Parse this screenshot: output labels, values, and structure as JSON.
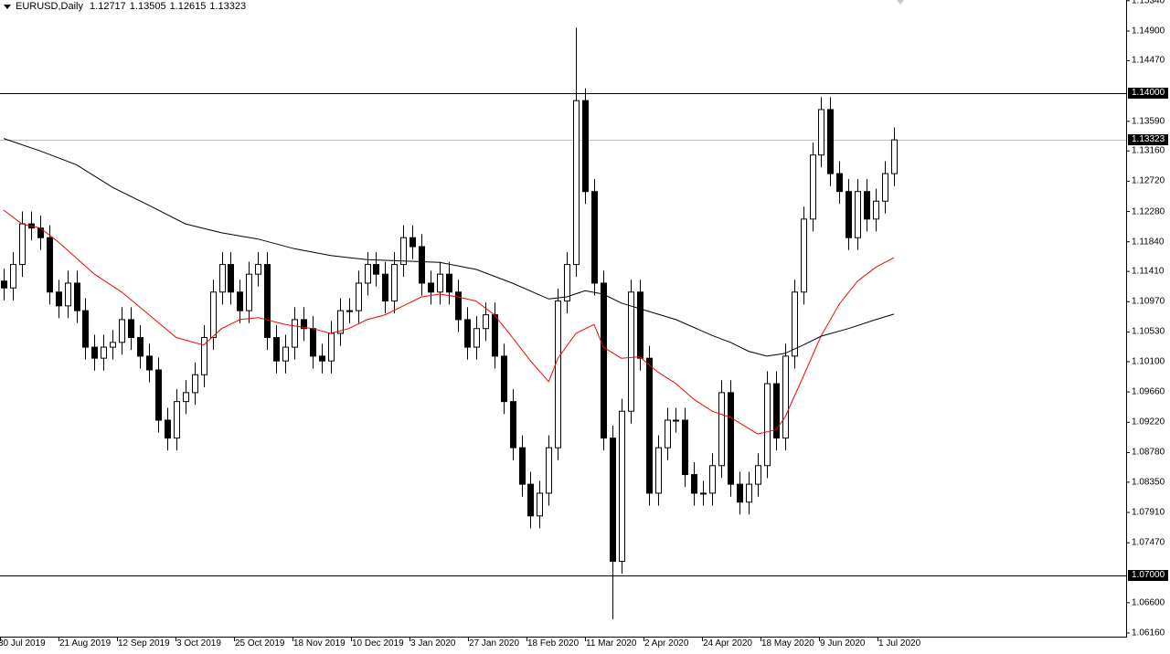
{
  "header": {
    "symbol": "EURUSD,Daily",
    "open": "1.12717",
    "high": "1.13505",
    "low": "1.12615",
    "close": "1.13323"
  },
  "chart_data": {
    "type": "candlestick",
    "title": "EURUSD,Daily",
    "ylim": [
      1.0616,
      1.1534
    ],
    "y_ticks": [
      "1.15340",
      "1.14900",
      "1.14470",
      "1.13590",
      "1.13160",
      "1.12720",
      "1.12280",
      "1.11840",
      "1.11410",
      "1.10970",
      "1.10530",
      "1.10100",
      "1.09660",
      "1.09220",
      "1.08780",
      "1.08350",
      "1.07910",
      "1.07470",
      "1.06600",
      "1.06160"
    ],
    "x_ticks": [
      "30 Jul 2019",
      "21 Aug 2019",
      "12 Sep 2019",
      "3 Oct 2019",
      "25 Oct 2019",
      "18 Nov 2019",
      "10 Dec 2019",
      "3 Jan 2020",
      "27 Jan 2020",
      "18 Feb 2020",
      "11 Mar 2020",
      "2 Apr 2020",
      "24 Apr 2020",
      "18 May 2020",
      "9 Jun 2020",
      "1 Jul 2020"
    ],
    "closes": [
      1.1117,
      1.1151,
      1.121,
      1.1204,
      1.119,
      1.1111,
      1.1091,
      1.1124,
      1.1084,
      1.1031,
      1.1015,
      1.1031,
      1.1038,
      1.1071,
      1.1045,
      1.1018,
      1.0998,
      1.0925,
      1.0899,
      1.0952,
      1.0965,
      1.0991,
      1.1045,
      1.1111,
      1.1151,
      1.1111,
      1.1084,
      1.1137,
      1.1151,
      1.1045,
      1.1011,
      1.1031,
      1.1071,
      1.1058,
      1.1018,
      1.1011,
      1.1051,
      1.1084,
      1.1084,
      1.1124,
      1.1151,
      1.1137,
      1.1098,
      1.1151,
      1.119,
      1.1177,
      1.1124,
      1.1111,
      1.1137,
      1.1111,
      1.1071,
      1.1031,
      1.1058,
      1.1078,
      1.1018,
      1.0952,
      1.0885,
      1.0832,
      1.0786,
      1.0819,
      1.0885,
      1.1098,
      1.1151,
      1.1389,
      1.1257,
      1.1124,
      1.0899,
      1.072,
      1.0938,
      1.1111,
      1.1015,
      1.0819,
      1.0885,
      1.0925,
      1.0925,
      1.0846,
      1.0819,
      1.0819,
      1.0859,
      1.0965,
      1.0832,
      1.0806,
      1.0832,
      1.0859,
      1.0978,
      1.0899,
      1.1018,
      1.1111,
      1.1217,
      1.131,
      1.1376,
      1.1283,
      1.1257,
      1.119,
      1.1257,
      1.1217,
      1.1243,
      1.1283,
      1.1332
    ],
    "extremes": {
      "high": 1.1495,
      "low": 1.0636
    },
    "ma_fast": {
      "color": "#ff0000",
      "points": [
        [
          0,
          1.123
        ],
        [
          2,
          1.121
        ],
        [
          4,
          1.1204
        ],
        [
          6,
          1.1184
        ],
        [
          10,
          1.1137
        ],
        [
          13,
          1.1111
        ],
        [
          16,
          1.1078
        ],
        [
          19,
          1.1045
        ],
        [
          22,
          1.1034
        ],
        [
          24,
          1.1058
        ],
        [
          26,
          1.1071
        ],
        [
          28,
          1.1074
        ],
        [
          31,
          1.1064
        ],
        [
          34,
          1.1058
        ],
        [
          36,
          1.1051
        ],
        [
          38,
          1.1058
        ],
        [
          40,
          1.1071
        ],
        [
          42,
          1.1078
        ],
        [
          44,
          1.1091
        ],
        [
          46,
          1.1104
        ],
        [
          48,
          1.1108
        ],
        [
          50,
          1.1104
        ],
        [
          52,
          1.1098
        ],
        [
          54,
          1.1078
        ],
        [
          56,
          1.1045
        ],
        [
          58,
          1.1011
        ],
        [
          60,
          1.0981
        ],
        [
          61,
          1.1015
        ],
        [
          63,
          1.1051
        ],
        [
          65,
          1.1064
        ],
        [
          66,
          1.1031
        ],
        [
          68,
          1.1015
        ],
        [
          70,
          1.1017
        ],
        [
          72,
          1.0995
        ],
        [
          74,
          1.0978
        ],
        [
          76,
          1.0955
        ],
        [
          78,
          1.0938
        ],
        [
          80,
          1.0929
        ],
        [
          82,
          1.0913
        ],
        [
          83,
          1.0905
        ],
        [
          85,
          1.0911
        ],
        [
          86,
          1.0929
        ],
        [
          88,
          1.0988
        ],
        [
          90,
          1.1048
        ],
        [
          92,
          1.1094
        ],
        [
          94,
          1.1127
        ],
        [
          96,
          1.1147
        ],
        [
          98,
          1.1161
        ]
      ]
    },
    "ma_slow": {
      "color": "#000000",
      "points": [
        [
          0,
          1.1334
        ],
        [
          4,
          1.1316
        ],
        [
          8,
          1.1296
        ],
        [
          12,
          1.1263
        ],
        [
          16,
          1.1237
        ],
        [
          20,
          1.121
        ],
        [
          24,
          1.1197
        ],
        [
          28,
          1.1188
        ],
        [
          32,
          1.1174
        ],
        [
          36,
          1.1164
        ],
        [
          40,
          1.1158
        ],
        [
          44,
          1.1156
        ],
        [
          48,
          1.1154
        ],
        [
          52,
          1.1144
        ],
        [
          56,
          1.1124
        ],
        [
          60,
          1.1101
        ],
        [
          62,
          1.1104
        ],
        [
          64,
          1.1113
        ],
        [
          66,
          1.1108
        ],
        [
          68,
          1.1095
        ],
        [
          70,
          1.1087
        ],
        [
          74,
          1.1071
        ],
        [
          78,
          1.1048
        ],
        [
          80,
          1.1038
        ],
        [
          82,
          1.1025
        ],
        [
          84,
          1.1018
        ],
        [
          86,
          1.1022
        ],
        [
          88,
          1.1034
        ],
        [
          90,
          1.1047
        ],
        [
          93,
          1.1058
        ],
        [
          96,
          1.1071
        ],
        [
          98,
          1.1079
        ]
      ]
    },
    "hlines": [
      {
        "price": 1.14,
        "label": "1.14000",
        "color": "#000000"
      },
      {
        "price": 1.07,
        "label": "1.07000",
        "color": "#000000"
      },
      {
        "price": 1.13323,
        "label": "1.13323",
        "color": "#c0c0c0"
      }
    ],
    "colors": {
      "background": "#ffffff",
      "candle_up": "#ffffff",
      "candle_down": "#000000",
      "outline": "#000000"
    }
  }
}
